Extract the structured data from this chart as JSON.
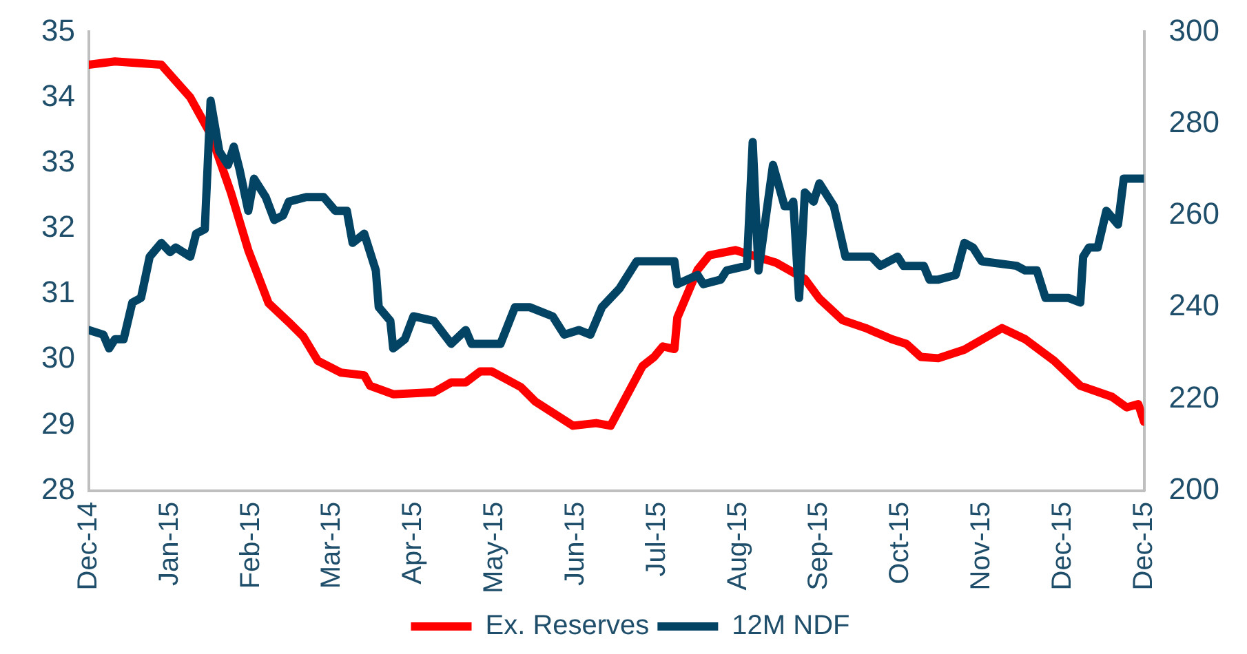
{
  "chart_data": {
    "type": "line",
    "legend": "bottom",
    "grid": false,
    "marker": "none",
    "line_style": "solid",
    "xlim": [
      "2014-12-31",
      "2015-12-30"
    ],
    "xticks": [
      {
        "value": "2014-12-31",
        "label": "Dec-14"
      },
      {
        "value": "2015-01-28",
        "label": "Jan-15"
      },
      {
        "value": "2015-02-25",
        "label": "Feb-15"
      },
      {
        "value": "2015-03-25",
        "label": "Mar-15"
      },
      {
        "value": "2015-04-22",
        "label": "Apr-15"
      },
      {
        "value": "2015-05-20",
        "label": "May-15"
      },
      {
        "value": "2015-06-17",
        "label": "Jun-15"
      },
      {
        "value": "2015-07-15",
        "label": "Jul-15"
      },
      {
        "value": "2015-08-12",
        "label": "Aug-15"
      },
      {
        "value": "2015-09-09",
        "label": "Sep-15"
      },
      {
        "value": "2015-10-07",
        "label": "Oct-15"
      },
      {
        "value": "2015-11-04",
        "label": "Nov-15"
      },
      {
        "value": "2015-12-02",
        "label": "Dec-15"
      },
      {
        "value": "2015-12-30",
        "label": "Dec-15"
      }
    ],
    "ylim": [
      28,
      35
    ],
    "yticks": [
      28,
      29,
      30,
      31,
      32,
      33,
      34,
      35
    ],
    "y2lim": [
      200,
      300
    ],
    "y2ticks": [
      200,
      220,
      240,
      260,
      280,
      300
    ],
    "series": [
      {
        "name": "Ex. Reserves",
        "color": "#ff0000",
        "x": [
          "2014-12-31",
          "2015-01-09",
          "2015-01-25",
          "2015-02-04",
          "2015-02-11",
          "2015-02-18",
          "2015-02-24",
          "2015-03-03",
          "2015-03-10",
          "2015-03-15",
          "2015-03-20",
          "2015-03-28",
          "2015-04-05",
          "2015-04-07",
          "2015-04-15",
          "2015-04-29",
          "2015-05-05",
          "2015-05-10",
          "2015-05-15",
          "2015-05-19",
          "2015-05-29",
          "2015-06-03",
          "2015-06-16",
          "2015-06-24",
          "2015-06-29",
          "2015-07-10",
          "2015-07-14",
          "2015-07-17",
          "2015-07-21",
          "2015-07-22",
          "2015-07-29",
          "2015-08-02",
          "2015-08-11",
          "2015-08-16",
          "2015-08-25",
          "2015-09-04",
          "2015-09-09",
          "2015-09-17",
          "2015-09-25",
          "2015-10-04",
          "2015-10-09",
          "2015-10-14",
          "2015-10-20",
          "2015-10-29",
          "2015-11-11",
          "2015-11-19",
          "2015-11-29",
          "2015-12-08",
          "2015-12-19",
          "2015-12-24",
          "2015-12-28",
          "2015-12-30"
        ],
        "values": [
          34.5,
          34.55,
          34.5,
          34.0,
          33.44,
          32.55,
          31.67,
          30.86,
          30.57,
          30.35,
          29.98,
          29.8,
          29.76,
          29.6,
          29.47,
          29.5,
          29.65,
          29.65,
          29.82,
          29.82,
          29.58,
          29.36,
          28.99,
          29.03,
          28.99,
          29.9,
          30.04,
          30.2,
          30.16,
          30.64,
          31.37,
          31.59,
          31.67,
          31.6,
          31.48,
          31.23,
          30.93,
          30.6,
          30.48,
          30.31,
          30.24,
          30.04,
          30.02,
          30.15,
          30.48,
          30.31,
          29.98,
          29.6,
          29.43,
          29.27,
          29.32,
          29.05
        ]
      },
      {
        "name": "12M NDF",
        "color": "#034465",
        "axis": "y2",
        "x": [
          "2014-12-31",
          "2015-01-05",
          "2015-01-07",
          "2015-01-09",
          "2015-01-12",
          "2015-01-15",
          "2015-01-18",
          "2015-01-21",
          "2015-01-25",
          "2015-01-28",
          "2015-01-30",
          "2015-02-04",
          "2015-02-06",
          "2015-02-09",
          "2015-02-11",
          "2015-02-14",
          "2015-02-17",
          "2015-02-19",
          "2015-02-21",
          "2015-02-24",
          "2015-02-26",
          "2015-03-02",
          "2015-03-05",
          "2015-03-08",
          "2015-03-10",
          "2015-03-16",
          "2015-03-22",
          "2015-03-26",
          "2015-03-30",
          "2015-04-01",
          "2015-04-05",
          "2015-04-09",
          "2015-04-10",
          "2015-04-14",
          "2015-04-15",
          "2015-04-19",
          "2015-04-22",
          "2015-04-29",
          "2015-05-05",
          "2015-05-10",
          "2015-05-12",
          "2015-05-22",
          "2015-05-27",
          "2015-06-01",
          "2015-06-09",
          "2015-06-13",
          "2015-06-18",
          "2015-06-22",
          "2015-06-26",
          "2015-07-02",
          "2015-07-08",
          "2015-07-14",
          "2015-07-21",
          "2015-07-22",
          "2015-07-29",
          "2015-07-31",
          "2015-08-06",
          "2015-08-08",
          "2015-08-15",
          "2015-08-17",
          "2015-08-19",
          "2015-08-24",
          "2015-08-28",
          "2015-08-30",
          "2015-08-31",
          "2015-09-02",
          "2015-09-04",
          "2015-09-07",
          "2015-09-09",
          "2015-09-14",
          "2015-09-18",
          "2015-09-27",
          "2015-09-30",
          "2015-10-06",
          "2015-10-08",
          "2015-10-15",
          "2015-10-17",
          "2015-10-20",
          "2015-10-26",
          "2015-10-29",
          "2015-11-01",
          "2015-11-04",
          "2015-11-16",
          "2015-11-19",
          "2015-11-23",
          "2015-11-26",
          "2015-12-04",
          "2015-12-08",
          "2015-12-09",
          "2015-12-11",
          "2015-12-14",
          "2015-12-17",
          "2015-12-21",
          "2015-12-23",
          "2015-12-30"
        ],
        "values": [
          235,
          234,
          231,
          233,
          233,
          241,
          242,
          251,
          254,
          252,
          253,
          251,
          256,
          257,
          285,
          274,
          271,
          275,
          270,
          261,
          268,
          264,
          259,
          260,
          263,
          264,
          264,
          261,
          261,
          254,
          256,
          248,
          240,
          237,
          231,
          233,
          238,
          237,
          232,
          235,
          232,
          232,
          240,
          240,
          238,
          234,
          235,
          234,
          240,
          244,
          250,
          250,
          250,
          245,
          247,
          245,
          246,
          248,
          249,
          276,
          248,
          271,
          262,
          262,
          263,
          242,
          265,
          263,
          267,
          262,
          251,
          251,
          249,
          251,
          249,
          249,
          246,
          246,
          247,
          254,
          253,
          250,
          249,
          248,
          248,
          242,
          242,
          241,
          251,
          253,
          253,
          261,
          258,
          268,
          268
        ]
      }
    ]
  }
}
